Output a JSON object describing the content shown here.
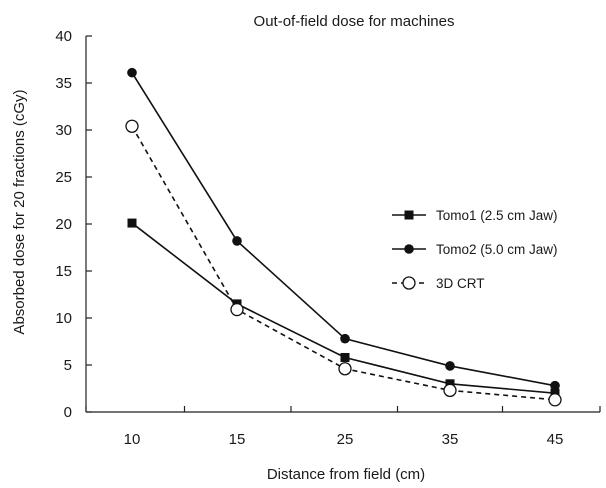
{
  "chart_data": {
    "type": "line",
    "title": "Out-of-field dose for machines",
    "xlabel": "Distance from field (cm)",
    "ylabel": "Absorbed dose for 20 fractions (cGy)",
    "categories": [
      "10",
      "15",
      "25",
      "35",
      "45"
    ],
    "ylim": [
      0,
      40
    ],
    "yticks": [
      0,
      5,
      10,
      15,
      20,
      25,
      30,
      35,
      40
    ],
    "grid": false,
    "legend_position": "right",
    "series": [
      {
        "name": "Tomo1 (2.5 cm Jaw)",
        "values": [
          20.1,
          11.5,
          5.8,
          3.0,
          2.0
        ],
        "marker": "filled-square",
        "line": "solid",
        "color": "#111111"
      },
      {
        "name": "Tomo2 (5.0 cm Jaw)",
        "values": [
          36.1,
          18.2,
          7.8,
          4.9,
          2.8
        ],
        "marker": "filled-circle",
        "line": "solid",
        "color": "#111111"
      },
      {
        "name": "3D CRT",
        "values": [
          30.4,
          10.9,
          4.6,
          2.3,
          1.3
        ],
        "marker": "open-circle",
        "line": "dashed",
        "color": "#111111"
      }
    ]
  }
}
